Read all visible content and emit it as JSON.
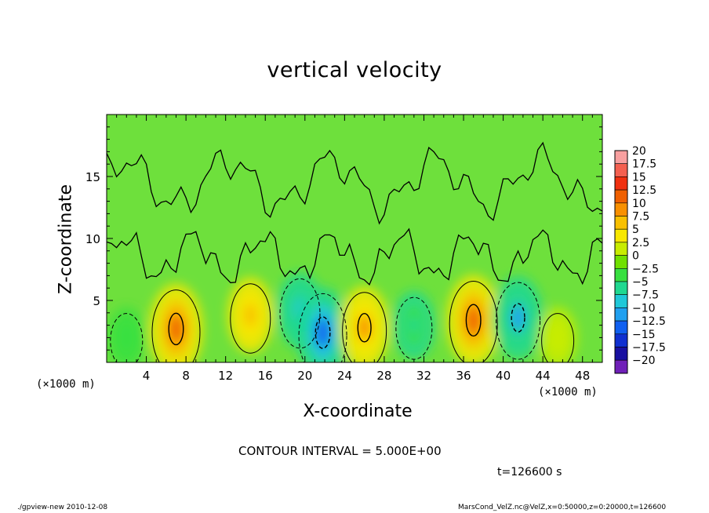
{
  "chart_data": {
    "type": "heatmap",
    "title": "vertical velocity",
    "xlabel": "X-coordinate",
    "ylabel": "Z-coordinate",
    "x_unit": "(×1000 m)",
    "y_unit": "(×1000 m)",
    "xlim": [
      0,
      50
    ],
    "ylim": [
      0,
      20
    ],
    "x_ticks": [
      4,
      8,
      12,
      16,
      20,
      24,
      28,
      32,
      36,
      40,
      44,
      48
    ],
    "y_ticks": [
      5,
      10,
      15
    ],
    "colorbar": {
      "levels": [
        20,
        17.5,
        15,
        12.5,
        10,
        7.5,
        5,
        2.5,
        0,
        -2.5,
        -5,
        -7.5,
        -10,
        -12.5,
        -15,
        -17.5,
        -20
      ],
      "colors": [
        "#f8a0a0",
        "#f46050",
        "#f03010",
        "#f06000",
        "#f89000",
        "#f8c000",
        "#f8e800",
        "#c8ec00",
        "#70e000",
        "#38e040",
        "#20d890",
        "#20c8d8",
        "#20a0f0",
        "#1060f0",
        "#1030d0",
        "#1810a0",
        "#7020b8"
      ]
    },
    "contour_interval": "CONTOUR INTERVAL = 5.000E+00",
    "features": [
      {
        "x": 7,
        "z": 2.7,
        "value": 12.5
      },
      {
        "x": 14.5,
        "z": 3.8,
        "value": 7.5
      },
      {
        "x": 19.5,
        "z": 4.2,
        "value": -7.5
      },
      {
        "x": 21.8,
        "z": 2.4,
        "value": -12.5
      },
      {
        "x": 26,
        "z": 2.8,
        "value": 10
      },
      {
        "x": 31,
        "z": 3.0,
        "value": -5
      },
      {
        "x": 37,
        "z": 3.4,
        "value": 12.5
      },
      {
        "x": 41.5,
        "z": 3.6,
        "value": -10
      },
      {
        "x": 2,
        "z": 2.0,
        "value": -2.5
      },
      {
        "x": 45.5,
        "z": 2.0,
        "value": 2.5
      }
    ]
  },
  "annotations": {
    "time": "t=126600 s",
    "footer_left": "./gpview-new   2010-12-08",
    "footer_right": "MarsCond_VelZ.nc@VelZ,x=0:50000,z=0:20000,t=126600"
  }
}
